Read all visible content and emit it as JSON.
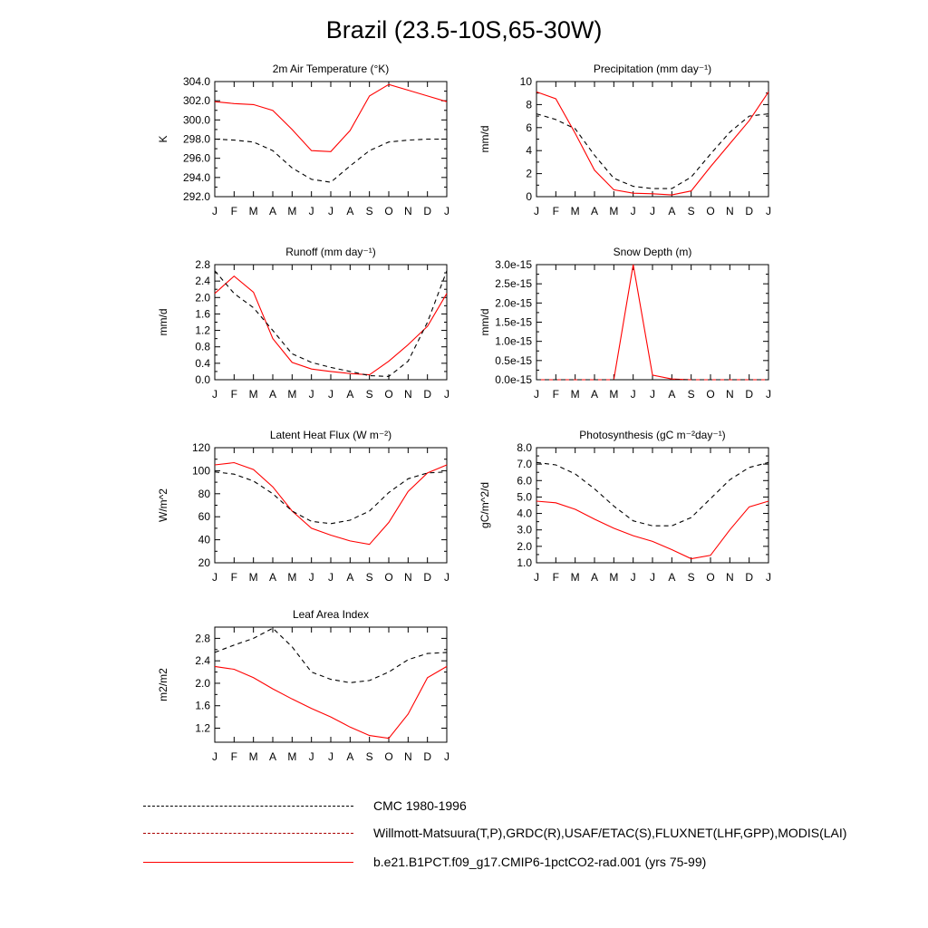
{
  "title": "Brazil (23.5-10S,65-30W)",
  "months": [
    "J",
    "F",
    "M",
    "A",
    "M",
    "J",
    "J",
    "A",
    "S",
    "O",
    "N",
    "D",
    "J"
  ],
  "colors": {
    "model": "#ff0000",
    "obs": "#000000"
  },
  "legend": [
    {
      "label": "CMC 1980-1996",
      "style": "dashed",
      "color": "#000000"
    },
    {
      "label": "Willmott-Matsuura(T,P),GRDC(R),USAF/ETAC(S),FLUXNET(LHF,GPP),MODIS(LAI)",
      "style": "dashed-multicolor",
      "color": "#aa0000"
    },
    {
      "label": "b.e21.B1PCT.f09_g17.CMIP6-1pctCO2-rad.001 (yrs 75-99)",
      "style": "solid",
      "color": "#ff0000"
    }
  ],
  "chart_data": [
    {
      "id": "t2m",
      "type": "line",
      "title": "2m Air Temperature (°K)",
      "ylabel": "K",
      "ylim": [
        292,
        304
      ],
      "yticks": [
        "292.0",
        "294.0",
        "296.0",
        "298.0",
        "300.0",
        "302.0",
        "304.0"
      ],
      "ytick_values": [
        292,
        294,
        296,
        298,
        300,
        302,
        304
      ],
      "series": [
        {
          "role": "model",
          "values": [
            301.9,
            301.7,
            301.6,
            301.0,
            299.0,
            296.8,
            296.7,
            298.9,
            302.5,
            303.7,
            303.1,
            302.5,
            301.9
          ]
        },
        {
          "role": "obs",
          "values": [
            298.0,
            297.9,
            297.7,
            296.8,
            295.0,
            293.8,
            293.5,
            295.2,
            296.8,
            297.7,
            297.9,
            298.0,
            298.0
          ]
        }
      ]
    },
    {
      "id": "precip",
      "type": "line",
      "title": "Precipitation (mm day⁻¹)",
      "ylabel": "mm/d",
      "ylim": [
        0,
        10
      ],
      "yticks": [
        "0",
        "2",
        "4",
        "6",
        "8",
        "10"
      ],
      "ytick_values": [
        0,
        2,
        4,
        6,
        8,
        10
      ],
      "series": [
        {
          "role": "model",
          "values": [
            9.1,
            8.5,
            5.5,
            2.3,
            0.6,
            0.3,
            0.25,
            0.15,
            0.5,
            2.6,
            4.6,
            6.6,
            9.1
          ]
        },
        {
          "role": "obs",
          "values": [
            7.2,
            6.7,
            5.9,
            3.6,
            1.6,
            0.9,
            0.7,
            0.7,
            1.7,
            3.7,
            5.6,
            7.0,
            7.2
          ]
        }
      ]
    },
    {
      "id": "runoff",
      "type": "line",
      "title": "Runoff (mm day⁻¹)",
      "ylabel": "mm/d",
      "ylim": [
        0,
        2.8
      ],
      "yticks": [
        "0.0",
        "0.4",
        "0.8",
        "1.2",
        "1.6",
        "2.0",
        "2.4",
        "2.8"
      ],
      "ytick_values": [
        0,
        0.4,
        0.8,
        1.2,
        1.6,
        2.0,
        2.4,
        2.8
      ],
      "series": [
        {
          "role": "model",
          "values": [
            2.1,
            2.52,
            2.13,
            1.0,
            0.42,
            0.26,
            0.2,
            0.15,
            0.12,
            0.45,
            0.85,
            1.3,
            2.1
          ]
        },
        {
          "role": "obs",
          "values": [
            2.65,
            2.1,
            1.75,
            1.2,
            0.63,
            0.42,
            0.3,
            0.2,
            0.1,
            0.08,
            0.45,
            1.4,
            2.65
          ]
        }
      ]
    },
    {
      "id": "snow",
      "type": "line",
      "title": "Snow Depth (m)",
      "ylabel": "mm/d",
      "ylim": [
        0,
        3e-15
      ],
      "yticks": [
        "0.0e-15",
        "0.5e-15",
        "1.0e-15",
        "1.5e-15",
        "2.0e-15",
        "2.5e-15",
        "3.0e-15"
      ],
      "ytick_values": [
        0,
        5e-16,
        1e-15,
        1.5e-15,
        2e-15,
        2.5e-15,
        3e-15
      ],
      "series": [
        {
          "role": "model",
          "values": [
            0,
            0,
            0,
            0,
            0,
            3e-15,
            1.2e-16,
            2e-17,
            0,
            0,
            0,
            0,
            0
          ]
        },
        {
          "role": "obs",
          "values": [
            0,
            0,
            0,
            0,
            0,
            0,
            0,
            0,
            0,
            0,
            0,
            0,
            0
          ]
        }
      ]
    },
    {
      "id": "lhf",
      "type": "line",
      "title": "Latent Heat Flux (W m⁻²)",
      "ylabel": "W/m^2",
      "ylim": [
        20,
        120
      ],
      "yticks": [
        "20",
        "40",
        "60",
        "80",
        "100",
        "120"
      ],
      "ytick_values": [
        20,
        40,
        60,
        80,
        100,
        120
      ],
      "series": [
        {
          "role": "model",
          "values": [
            105,
            107,
            101,
            86,
            65,
            50,
            44,
            39,
            36,
            55,
            82,
            98,
            105
          ]
        },
        {
          "role": "obs",
          "values": [
            99,
            97,
            91,
            80,
            65,
            56,
            54,
            57,
            65,
            81,
            93,
            98,
            99
          ]
        }
      ]
    },
    {
      "id": "gpp",
      "type": "line",
      "title": "Photosynthesis (gC m⁻²day⁻¹)",
      "ylabel": "gC/m^2/d",
      "ylim": [
        1,
        8
      ],
      "yticks": [
        "1.0",
        "2.0",
        "3.0",
        "4.0",
        "5.0",
        "6.0",
        "7.0",
        "8.0"
      ],
      "ytick_values": [
        1,
        2,
        3,
        4,
        5,
        6,
        7,
        8
      ],
      "series": [
        {
          "role": "model",
          "values": [
            4.75,
            4.65,
            4.25,
            3.65,
            3.1,
            2.65,
            2.3,
            1.8,
            1.25,
            1.45,
            3.0,
            4.4,
            4.75
          ]
        },
        {
          "role": "obs",
          "values": [
            7.1,
            6.95,
            6.4,
            5.5,
            4.45,
            3.55,
            3.25,
            3.25,
            3.75,
            4.9,
            6.05,
            6.8,
            7.1
          ]
        }
      ]
    },
    {
      "id": "lai",
      "type": "line",
      "title": "Leaf Area Index",
      "ylabel": "m2/m2",
      "ylim": [
        0.95,
        3.0
      ],
      "yticks": [
        "1.2",
        "1.6",
        "2.0",
        "2.4",
        "2.8"
      ],
      "ytick_values": [
        1.2,
        1.6,
        2.0,
        2.4,
        2.8
      ],
      "series": [
        {
          "role": "model",
          "values": [
            2.3,
            2.25,
            2.1,
            1.9,
            1.72,
            1.55,
            1.4,
            1.22,
            1.07,
            1.02,
            1.45,
            2.1,
            2.3
          ]
        },
        {
          "role": "obs",
          "values": [
            2.55,
            2.68,
            2.8,
            2.98,
            2.65,
            2.2,
            2.07,
            2.01,
            2.05,
            2.2,
            2.42,
            2.53,
            2.55
          ]
        }
      ]
    }
  ]
}
